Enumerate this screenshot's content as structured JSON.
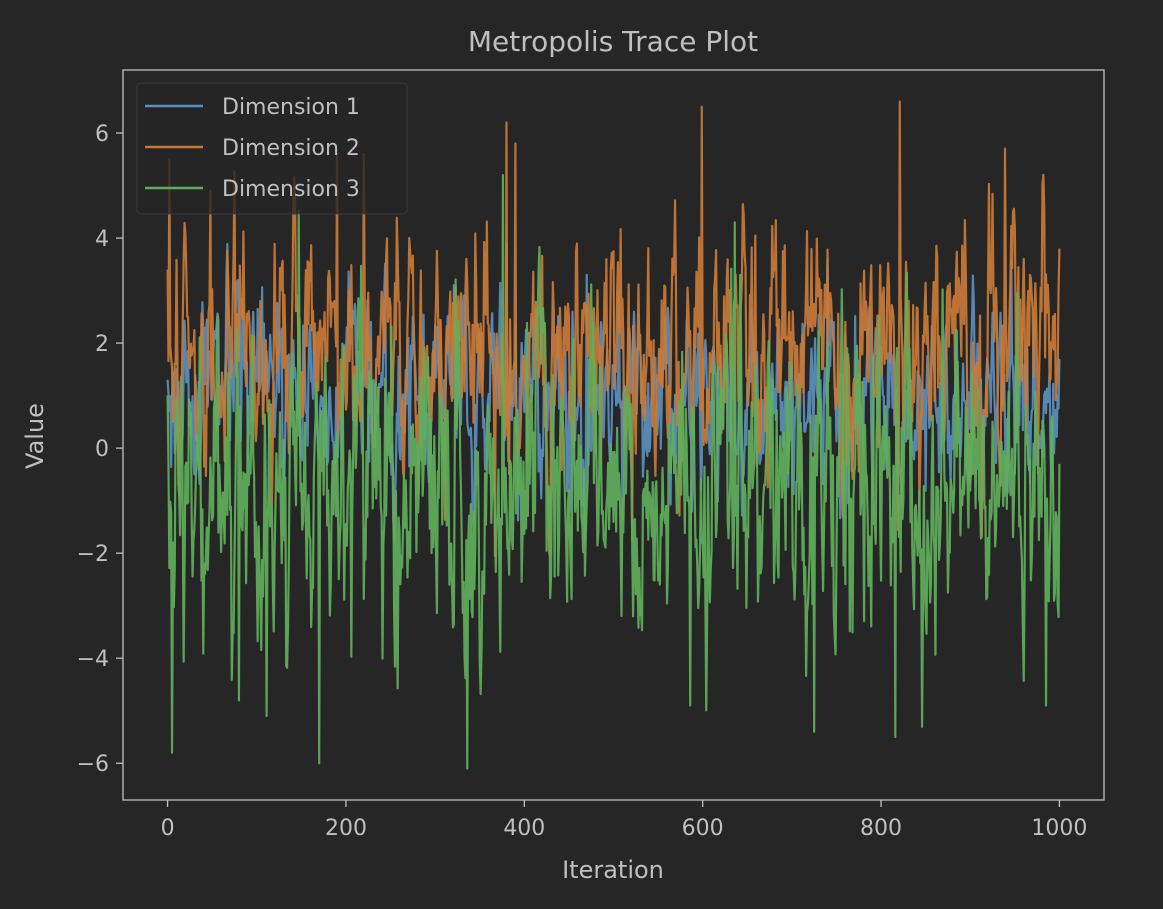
{
  "chart_data": {
    "type": "line",
    "title": "Metropolis Trace Plot",
    "xlabel": "Iteration",
    "ylabel": "Value",
    "xlim": [
      -50,
      1050
    ],
    "ylim": [
      -6.7,
      7.2
    ],
    "xticks": [
      0,
      200,
      400,
      600,
      800,
      1000
    ],
    "yticks": [
      -6,
      -4,
      -2,
      0,
      2,
      4,
      6
    ],
    "xtick_labels": [
      "0",
      "200",
      "400",
      "600",
      "800",
      "1000"
    ],
    "ytick_labels": [
      "−6",
      "−4",
      "−2",
      "0",
      "2",
      "4",
      "6"
    ],
    "grid": false,
    "legend_position": "upper-left",
    "n_iterations": 1000,
    "series": [
      {
        "name": "Dimension 1",
        "color": "#5a8fbf",
        "mean": 1.0,
        "sd": 0.9,
        "min": -1.8,
        "max": 3.9,
        "landmarks": [
          [
            0,
            1.3
          ],
          [
            5,
            1.0
          ],
          [
            380,
            3.9
          ],
          [
            470,
            3.3
          ],
          [
            740,
            3.6
          ],
          [
            1000,
            1.7
          ]
        ]
      },
      {
        "name": "Dimension 2",
        "color": "#c97a36",
        "mean": 1.9,
        "sd": 1.15,
        "min": -3.3,
        "max": 6.6,
        "landmarks": [
          [
            0,
            3.4
          ],
          [
            2,
            5.5
          ],
          [
            48,
            4.9
          ],
          [
            190,
            5.6
          ],
          [
            220,
            5.6
          ],
          [
            380,
            6.2
          ],
          [
            390,
            5.8
          ],
          [
            599,
            6.5
          ],
          [
            821,
            6.6
          ],
          [
            939,
            5.7
          ],
          [
            1000,
            3.8
          ]
        ]
      },
      {
        "name": "Dimension 3",
        "color": "#5fae5a",
        "mean": -0.9,
        "sd": 1.45,
        "min": -6.1,
        "max": 5.2,
        "landmarks": [
          [
            0,
            1.0
          ],
          [
            5,
            -5.8
          ],
          [
            80,
            -4.8
          ],
          [
            111,
            -5.1
          ],
          [
            170,
            -6.0
          ],
          [
            336,
            -6.1
          ],
          [
            376,
            5.2
          ],
          [
            586,
            -4.9
          ],
          [
            636,
            4.3
          ],
          [
            725,
            -5.4
          ],
          [
            816,
            -5.5
          ],
          [
            985,
            -4.9
          ],
          [
            1000,
            -0.3
          ]
        ]
      }
    ]
  }
}
